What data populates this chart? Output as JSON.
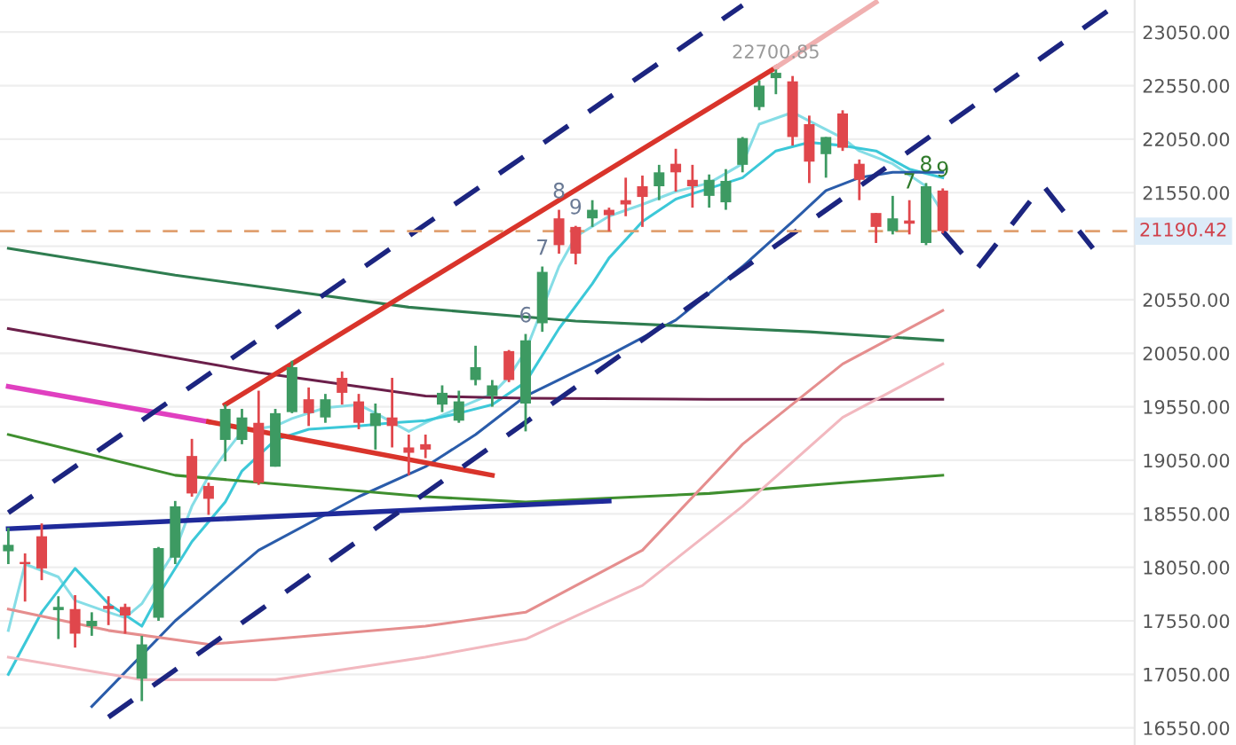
{
  "chart_data": {
    "type": "candlestick",
    "categories": [
      null,
      null,
      null,
      null,
      null,
      null,
      null,
      null,
      null,
      null,
      null,
      null,
      null,
      null,
      null,
      null,
      null,
      null,
      null,
      null,
      null,
      null,
      null,
      null,
      null,
      null,
      null,
      null,
      null,
      null,
      null,
      null,
      null,
      null,
      null,
      null,
      null,
      null,
      null,
      null,
      null,
      null,
      null,
      null,
      null,
      null,
      null,
      null,
      null,
      null,
      null,
      null,
      null,
      null,
      null,
      null,
      null,
      null,
      null,
      null,
      null,
      null,
      null,
      null,
      null,
      null,
      null,
      null
    ],
    "ohlc": [
      [
        18200,
        18420,
        18080,
        18260
      ],
      [
        18100,
        18180,
        17730,
        18080
      ],
      [
        18340,
        18460,
        17930,
        18040
      ],
      [
        17650,
        17780,
        17380,
        17680
      ],
      [
        17660,
        17790,
        17300,
        17430
      ],
      [
        17500,
        17630,
        17410,
        17550
      ],
      [
        17690,
        17780,
        17510,
        17660
      ],
      [
        17680,
        17710,
        17430,
        17600
      ],
      [
        17010,
        17410,
        16800,
        17330
      ],
      [
        17580,
        18240,
        17550,
        18230
      ],
      [
        18140,
        18670,
        18080,
        18620
      ],
      [
        19090,
        19250,
        18710,
        18740
      ],
      [
        18810,
        18840,
        18540,
        18690
      ],
      [
        19240,
        19570,
        19040,
        19530
      ],
      [
        19240,
        19530,
        19200,
        19450
      ],
      [
        19400,
        19700,
        18820,
        18840
      ],
      [
        18990,
        19530,
        18990,
        19490
      ],
      [
        19500,
        19980,
        19490,
        19920
      ],
      [
        19620,
        19730,
        19370,
        19490
      ],
      [
        19450,
        19670,
        19400,
        19620
      ],
      [
        19820,
        19880,
        19570,
        19680
      ],
      [
        19600,
        19670,
        19340,
        19400
      ],
      [
        19370,
        19580,
        19150,
        19490
      ],
      [
        19450,
        19820,
        19170,
        19370
      ],
      [
        19170,
        19290,
        18910,
        19120
      ],
      [
        19200,
        19290,
        19070,
        19150
      ],
      [
        19570,
        19750,
        19500,
        19680
      ],
      [
        19420,
        19700,
        19400,
        19600
      ],
      [
        19800,
        20120,
        19750,
        19920
      ],
      [
        19650,
        19800,
        19550,
        19750
      ],
      [
        20070,
        20080,
        19780,
        19800
      ],
      [
        19580,
        20230,
        19320,
        20170
      ],
      [
        20330,
        20860,
        20250,
        20810
      ],
      [
        21310,
        21390,
        20980,
        21060
      ],
      [
        21230,
        21240,
        20880,
        20980
      ],
      [
        21310,
        21480,
        21230,
        21390
      ],
      [
        21390,
        21410,
        21190,
        21340
      ],
      [
        21480,
        21690,
        21330,
        21440
      ],
      [
        21610,
        21710,
        21230,
        21510
      ],
      [
        21610,
        21810,
        21480,
        21740
      ],
      [
        21820,
        21960,
        21560,
        21740
      ],
      [
        21670,
        21810,
        21410,
        21610
      ],
      [
        21520,
        21720,
        21410,
        21670
      ],
      [
        21460,
        21770,
        21390,
        21660
      ],
      [
        21810,
        22070,
        21740,
        22060
      ],
      [
        22350,
        22600,
        22320,
        22550
      ],
      [
        22620,
        22700.85,
        22470,
        22670
      ],
      [
        22590,
        22640,
        21990,
        22070
      ],
      [
        22190,
        22270,
        21640,
        21840
      ],
      [
        21910,
        22070,
        21690,
        22070
      ],
      [
        22290,
        22320,
        21940,
        21970
      ],
      [
        21820,
        21860,
        21480,
        21670
      ],
      [
        21360,
        21360,
        21080,
        21230
      ],
      [
        21190,
        21520,
        21160,
        21310
      ],
      [
        21290,
        21480,
        21160,
        21260
      ],
      [
        21080,
        21640,
        21060,
        21610
      ],
      [
        21570,
        21590,
        21170,
        21190.42
      ],
      null,
      null,
      null,
      null,
      null,
      null,
      null,
      null,
      null,
      null,
      null
    ],
    "colors": [
      "#3d9a62",
      "#e0474c",
      "#e0474c",
      "#3d9a62",
      "#e0474c",
      "#3d9a62",
      "#e0474c",
      "#e0474c",
      "#3d9a62",
      "#3d9a62",
      "#3d9a62",
      "#e0474c",
      "#e0474c",
      "#3d9a62",
      "#3d9a62",
      "#e0474c",
      "#3d9a62",
      "#3d9a62",
      "#e0474c",
      "#3d9a62",
      "#e0474c",
      "#e0474c",
      "#3d9a62",
      "#e0474c",
      "#e0474c",
      "#e0474c",
      "#3d9a62",
      "#3d9a62",
      "#3d9a62",
      "#3d9a62",
      "#e0474c",
      "#3d9a62",
      "#3d9a62",
      "#e0474c",
      "#e0474c",
      "#3d9a62",
      "#e0474c",
      "#e0474c",
      "#e0474c",
      "#3d9a62",
      "#e0474c",
      "#e0474c",
      "#3d9a62",
      "#3d9a62",
      "#3d9a62",
      "#3d9a62",
      "#3d9a62",
      "#e0474c",
      "#e0474c",
      "#3d9a62",
      "#e0474c",
      "#e0474c",
      "#e0474c",
      "#3d9a62",
      "#e0474c",
      "#3d9a62",
      "#e0474c",
      null,
      null,
      null,
      null,
      null,
      null,
      null,
      null,
      null,
      null,
      null
    ],
    "series": [
      {
        "type": "line",
        "color": "#86dde6",
        "values": [
          17460,
          18080,
          null,
          17960,
          17740,
          null,
          17630,
          17580,
          17710,
          null,
          18210,
          18620,
          18900,
          19120,
          19320,
          null,
          19370,
          19440,
          null,
          19540,
          null,
          19570,
          19490,
          null,
          19320,
          19400,
          null,
          19540,
          null,
          19670,
          19830,
          20070,
          null,
          20860,
          21140,
          null,
          21330,
          null,
          21440,
          null,
          21560,
          null,
          21640,
          null,
          21820,
          22190,
          null,
          22300,
          22220,
          null,
          22060,
          21940,
          null,
          21820,
          null,
          21610,
          21360,
          null,
          null,
          null,
          null,
          null,
          null,
          null,
          null,
          null,
          null,
          null
        ]
      },
      {
        "type": "line",
        "color": "#3cc8d8",
        "values": [
          17050,
          null,
          17630,
          null,
          18040,
          null,
          17710,
          null,
          17500,
          17790,
          null,
          18290,
          null,
          18660,
          18950,
          null,
          19240,
          null,
          19340,
          null,
          null,
          19370,
          null,
          19400,
          null,
          19420,
          null,
          19490,
          null,
          19570,
          null,
          19780,
          null,
          20280,
          null,
          20700,
          20940,
          null,
          21280,
          null,
          21490,
          null,
          21590,
          null,
          21690,
          null,
          21940,
          null,
          22020,
          null,
          21990,
          null,
          21940,
          null,
          21770,
          null,
          21690,
          null,
          null,
          null,
          null,
          null,
          null,
          null,
          null,
          null,
          null,
          null
        ]
      },
      {
        "type": "line",
        "color": "#2a5caa",
        "values": [
          null,
          null,
          null,
          null,
          null,
          16750,
          null,
          null,
          null,
          null,
          17550,
          null,
          null,
          null,
          null,
          18210,
          null,
          null,
          null,
          null,
          null,
          18710,
          null,
          null,
          null,
          18990,
          null,
          null,
          19290,
          null,
          null,
          19650,
          null,
          null,
          null,
          null,
          20030,
          null,
          null,
          null,
          20360,
          null,
          null,
          null,
          20860,
          null,
          null,
          21280,
          null,
          21570,
          null,
          21690,
          null,
          21740,
          null,
          null,
          21740,
          null,
          null,
          null,
          null,
          null,
          null,
          null,
          null,
          null,
          null,
          null
        ]
      },
      {
        "type": "line",
        "color": "#2f7d50",
        "values": [
          21030,
          null,
          null,
          null,
          null,
          null,
          null,
          null,
          null,
          null,
          20780,
          null,
          null,
          null,
          null,
          null,
          null,
          null,
          null,
          null,
          null,
          null,
          null,
          null,
          20480,
          null,
          null,
          null,
          null,
          null,
          null,
          null,
          null,
          null,
          20350,
          null,
          null,
          null,
          null,
          null,
          null,
          null,
          null,
          null,
          null,
          null,
          null,
          null,
          20250,
          null,
          null,
          null,
          null,
          null,
          null,
          null,
          20170,
          null,
          null,
          null,
          null,
          null,
          null,
          null,
          null,
          null,
          null,
          null
        ]
      },
      {
        "type": "line",
        "color": "#6b1f4a",
        "values": [
          20280,
          null,
          null,
          null,
          null,
          null,
          null,
          null,
          null,
          null,
          null,
          null,
          null,
          null,
          null,
          19870,
          null,
          null,
          null,
          null,
          null,
          null,
          null,
          null,
          null,
          19650,
          null,
          null,
          null,
          null,
          null,
          19630,
          null,
          null,
          null,
          null,
          null,
          null,
          null,
          null,
          null,
          null,
          19620,
          null,
          null,
          null,
          null,
          null,
          null,
          null,
          null,
          null,
          null,
          null,
          null,
          null,
          19620,
          null,
          null,
          null,
          null,
          null,
          null,
          null,
          null,
          null,
          null,
          null
        ]
      },
      {
        "type": "line",
        "color": "#3f8f2f",
        "values": [
          19290,
          null,
          null,
          null,
          null,
          null,
          null,
          null,
          null,
          null,
          18910,
          null,
          null,
          null,
          null,
          null,
          null,
          null,
          null,
          null,
          null,
          null,
          null,
          null,
          null,
          18710,
          null,
          null,
          null,
          null,
          null,
          18660,
          null,
          null,
          null,
          null,
          null,
          null,
          null,
          null,
          null,
          null,
          18740,
          null,
          null,
          null,
          null,
          null,
          null,
          null,
          18840,
          null,
          null,
          null,
          null,
          null,
          18910,
          null,
          null,
          null,
          null,
          null,
          null,
          null,
          null,
          null,
          null,
          null
        ]
      },
      {
        "type": "line",
        "color": "#e58e8e",
        "values": [
          17660,
          null,
          null,
          null,
          null,
          null,
          17460,
          null,
          null,
          null,
          null,
          null,
          17330,
          null,
          null,
          null,
          null,
          null,
          null,
          null,
          null,
          null,
          null,
          null,
          null,
          17500,
          null,
          null,
          null,
          null,
          null,
          17630,
          null,
          null,
          null,
          null,
          null,
          null,
          18210,
          null,
          null,
          null,
          null,
          null,
          19200,
          null,
          null,
          null,
          null,
          null,
          19950,
          null,
          null,
          null,
          null,
          null,
          20450,
          null,
          null,
          null,
          null,
          null,
          null,
          null,
          null,
          null,
          null,
          null
        ]
      },
      {
        "type": "line",
        "color": "#f2b8bf",
        "values": [
          17210,
          null,
          null,
          null,
          null,
          null,
          null,
          null,
          17000,
          null,
          null,
          null,
          null,
          null,
          null,
          null,
          17000,
          null,
          null,
          null,
          null,
          null,
          null,
          null,
          null,
          17210,
          null,
          null,
          null,
          null,
          null,
          17380,
          null,
          null,
          null,
          null,
          null,
          null,
          17880,
          null,
          null,
          null,
          null,
          null,
          18620,
          null,
          null,
          null,
          null,
          null,
          19450,
          null,
          null,
          null,
          null,
          null,
          19950,
          null,
          null,
          null,
          null,
          null,
          null,
          null,
          null,
          null,
          null,
          null
        ]
      },
      {
        "type": "line",
        "color": "#d9342b",
        "values": [
          null,
          null,
          null,
          null,
          null,
          null,
          null,
          null,
          null,
          null,
          null,
          null,
          null,
          19570,
          null,
          null,
          null,
          null,
          null,
          null,
          null,
          null,
          null,
          null,
          null,
          null,
          null,
          null,
          null,
          null,
          null,
          null,
          null,
          null,
          null,
          null,
          null,
          null,
          null,
          null,
          null,
          null,
          null,
          null,
          null,
          null,
          22720,
          null,
          null,
          null,
          null,
          null,
          null,
          null,
          null,
          null,
          null,
          null,
          null,
          null,
          null,
          null,
          null,
          null,
          null,
          null,
          null,
          null
        ]
      },
      {
        "type": "line",
        "color": "#f0b0b0",
        "values": [
          null,
          null,
          null,
          null,
          null,
          null,
          null,
          null,
          null,
          null,
          null,
          null,
          null,
          null,
          null,
          null,
          null,
          null,
          null,
          null,
          null,
          null,
          null,
          null,
          null,
          null,
          null,
          null,
          null,
          null,
          null,
          null,
          null,
          null,
          null,
          null,
          null,
          null,
          null,
          null,
          null,
          null,
          null,
          null,
          null,
          null,
          22720,
          null,
          null,
          null,
          null,
          null,
          23330,
          null,
          null,
          null,
          null,
          null,
          null,
          null,
          null,
          null,
          null,
          null,
          null,
          null,
          null,
          null
        ]
      },
      {
        "type": "line",
        "color": "#e040c0",
        "values": [
          19740,
          null,
          null,
          null,
          null,
          null,
          null,
          null,
          null,
          null,
          null,
          null,
          19410,
          null,
          null,
          null,
          null,
          null,
          null,
          null,
          null,
          null,
          null,
          null,
          null,
          null,
          null,
          null,
          null,
          null,
          null,
          null,
          null,
          null,
          null,
          null,
          null,
          null,
          null,
          null,
          null,
          null,
          null,
          null,
          null,
          null,
          null,
          null,
          null,
          null,
          null,
          null,
          null,
          null,
          null,
          null,
          null,
          null,
          null,
          null,
          null,
          null,
          null,
          null,
          null,
          null,
          null,
          null
        ]
      },
      {
        "type": "line",
        "color": "#d9342b",
        "values": [
          null,
          null,
          null,
          null,
          null,
          null,
          null,
          null,
          null,
          null,
          null,
          null,
          19410,
          null,
          null,
          null,
          null,
          null,
          null,
          null,
          null,
          null,
          null,
          null,
          null,
          null,
          null,
          null,
          null,
          18910,
          null,
          null,
          null,
          null,
          null,
          null,
          null,
          null,
          null,
          null,
          null,
          null,
          null,
          null,
          null,
          null,
          null,
          null,
          null,
          null,
          null,
          null,
          null,
          null,
          null,
          null,
          null,
          null,
          null,
          null,
          null,
          null,
          null,
          null,
          null,
          null,
          null,
          null
        ]
      },
      {
        "type": "line",
        "color": "#1f2a9a",
        "values": [
          18410,
          null,
          null,
          null,
          null,
          null,
          null,
          null,
          null,
          null,
          null,
          null,
          null,
          null,
          null,
          null,
          null,
          null,
          null,
          null,
          null,
          null,
          null,
          null,
          null,
          null,
          null,
          null,
          null,
          null,
          null,
          null,
          null,
          null,
          null,
          null,
          18670,
          null,
          null,
          null,
          null,
          null,
          null,
          null,
          null,
          null,
          null,
          null,
          null,
          null,
          null,
          null,
          null,
          null,
          null,
          null,
          null,
          null,
          null,
          null,
          null,
          null,
          null,
          null,
          null,
          null,
          null,
          null
        ]
      },
      {
        "type": "line",
        "color": "#1c2580",
        "line_style": "dashed",
        "values": [
          18560,
          null,
          null,
          null,
          null,
          null,
          null,
          null,
          null,
          null,
          null,
          null,
          null,
          null,
          null,
          null,
          null,
          null,
          null,
          null,
          null,
          null,
          null,
          null,
          null,
          null,
          null,
          null,
          null,
          null,
          null,
          null,
          null,
          null,
          null,
          null,
          null,
          null,
          null,
          null,
          null,
          null,
          null,
          null,
          23300,
          null,
          null,
          null,
          null,
          null,
          null,
          null,
          null,
          null,
          null,
          null,
          null,
          null,
          null,
          null,
          null,
          null,
          null,
          null,
          null,
          null,
          null,
          null
        ]
      },
      {
        "type": "line",
        "color": "#1c2580",
        "line_style": "dashed",
        "values": [
          null,
          null,
          null,
          null,
          null,
          null,
          16650,
          null,
          null,
          null,
          null,
          null,
          null,
          null,
          null,
          null,
          null,
          null,
          null,
          null,
          null,
          null,
          null,
          null,
          null,
          null,
          null,
          null,
          null,
          null,
          null,
          null,
          null,
          null,
          null,
          null,
          null,
          null,
          null,
          null,
          null,
          null,
          null,
          null,
          null,
          null,
          null,
          null,
          null,
          null,
          null,
          null,
          null,
          null,
          null,
          null,
          null,
          null,
          null,
          null,
          null,
          null,
          null,
          null,
          null,
          null,
          23260,
          null
        ]
      },
      {
        "type": "line",
        "color": "#1c2580",
        "line_style": "dashed",
        "values": [
          null,
          null,
          null,
          null,
          null,
          null,
          null,
          null,
          null,
          null,
          null,
          null,
          null,
          null,
          null,
          null,
          null,
          null,
          null,
          null,
          null,
          null,
          null,
          null,
          null,
          null,
          null,
          null,
          null,
          null,
          null,
          null,
          null,
          null,
          null,
          null,
          null,
          null,
          null,
          null,
          null,
          null,
          null,
          null,
          null,
          null,
          null,
          null,
          null,
          null,
          null,
          null,
          null,
          null,
          null,
          null,
          21190,
          null,
          20830,
          null,
          null,
          null,
          21620,
          null,
          null,
          21030,
          null,
          null
        ]
      }
    ],
    "ref_lines": [
      {
        "axis": "y",
        "value": 21190.42,
        "label": "21190.42",
        "color": "#e0a070",
        "line_style": "dashed"
      }
    ],
    "annotations": [
      {
        "text": "22700.85",
        "y": 22700.85
      },
      {
        "text": "6",
        "y": 20230
      },
      {
        "text": "7",
        "y": 20860
      },
      {
        "text": "8",
        "y": 21390
      },
      {
        "text": "9",
        "y": 21240
      },
      {
        "text": "7",
        "y": 21480
      },
      {
        "text": "8",
        "y": 21640
      },
      {
        "text": "9",
        "y": 21590
      }
    ],
    "ylim": [
      16390,
      23350
    ],
    "yticks": [
      {
        "value": 16550,
        "label": "16550.00"
      },
      {
        "value": 17050,
        "label": "17050.00"
      },
      {
        "value": 17550,
        "label": "17550.00"
      },
      {
        "value": 18050,
        "label": "18050.00"
      },
      {
        "value": 18550,
        "label": "18550.00"
      },
      {
        "value": 19050,
        "label": "19050.00"
      },
      {
        "value": 19550,
        "label": "19550.00"
      },
      {
        "value": 20050,
        "label": "20050.00"
      },
      {
        "value": 20550,
        "label": "20550.00"
      },
      {
        "value": 21050,
        "label": null
      },
      {
        "value": 21550,
        "label": "21550.00"
      },
      {
        "value": 22050,
        "label": "22050.00"
      },
      {
        "value": 22550,
        "label": "22550.00"
      },
      {
        "value": 23050,
        "label": "23050.00"
      }
    ],
    "tick_labels": "y",
    "grid": "y"
  }
}
